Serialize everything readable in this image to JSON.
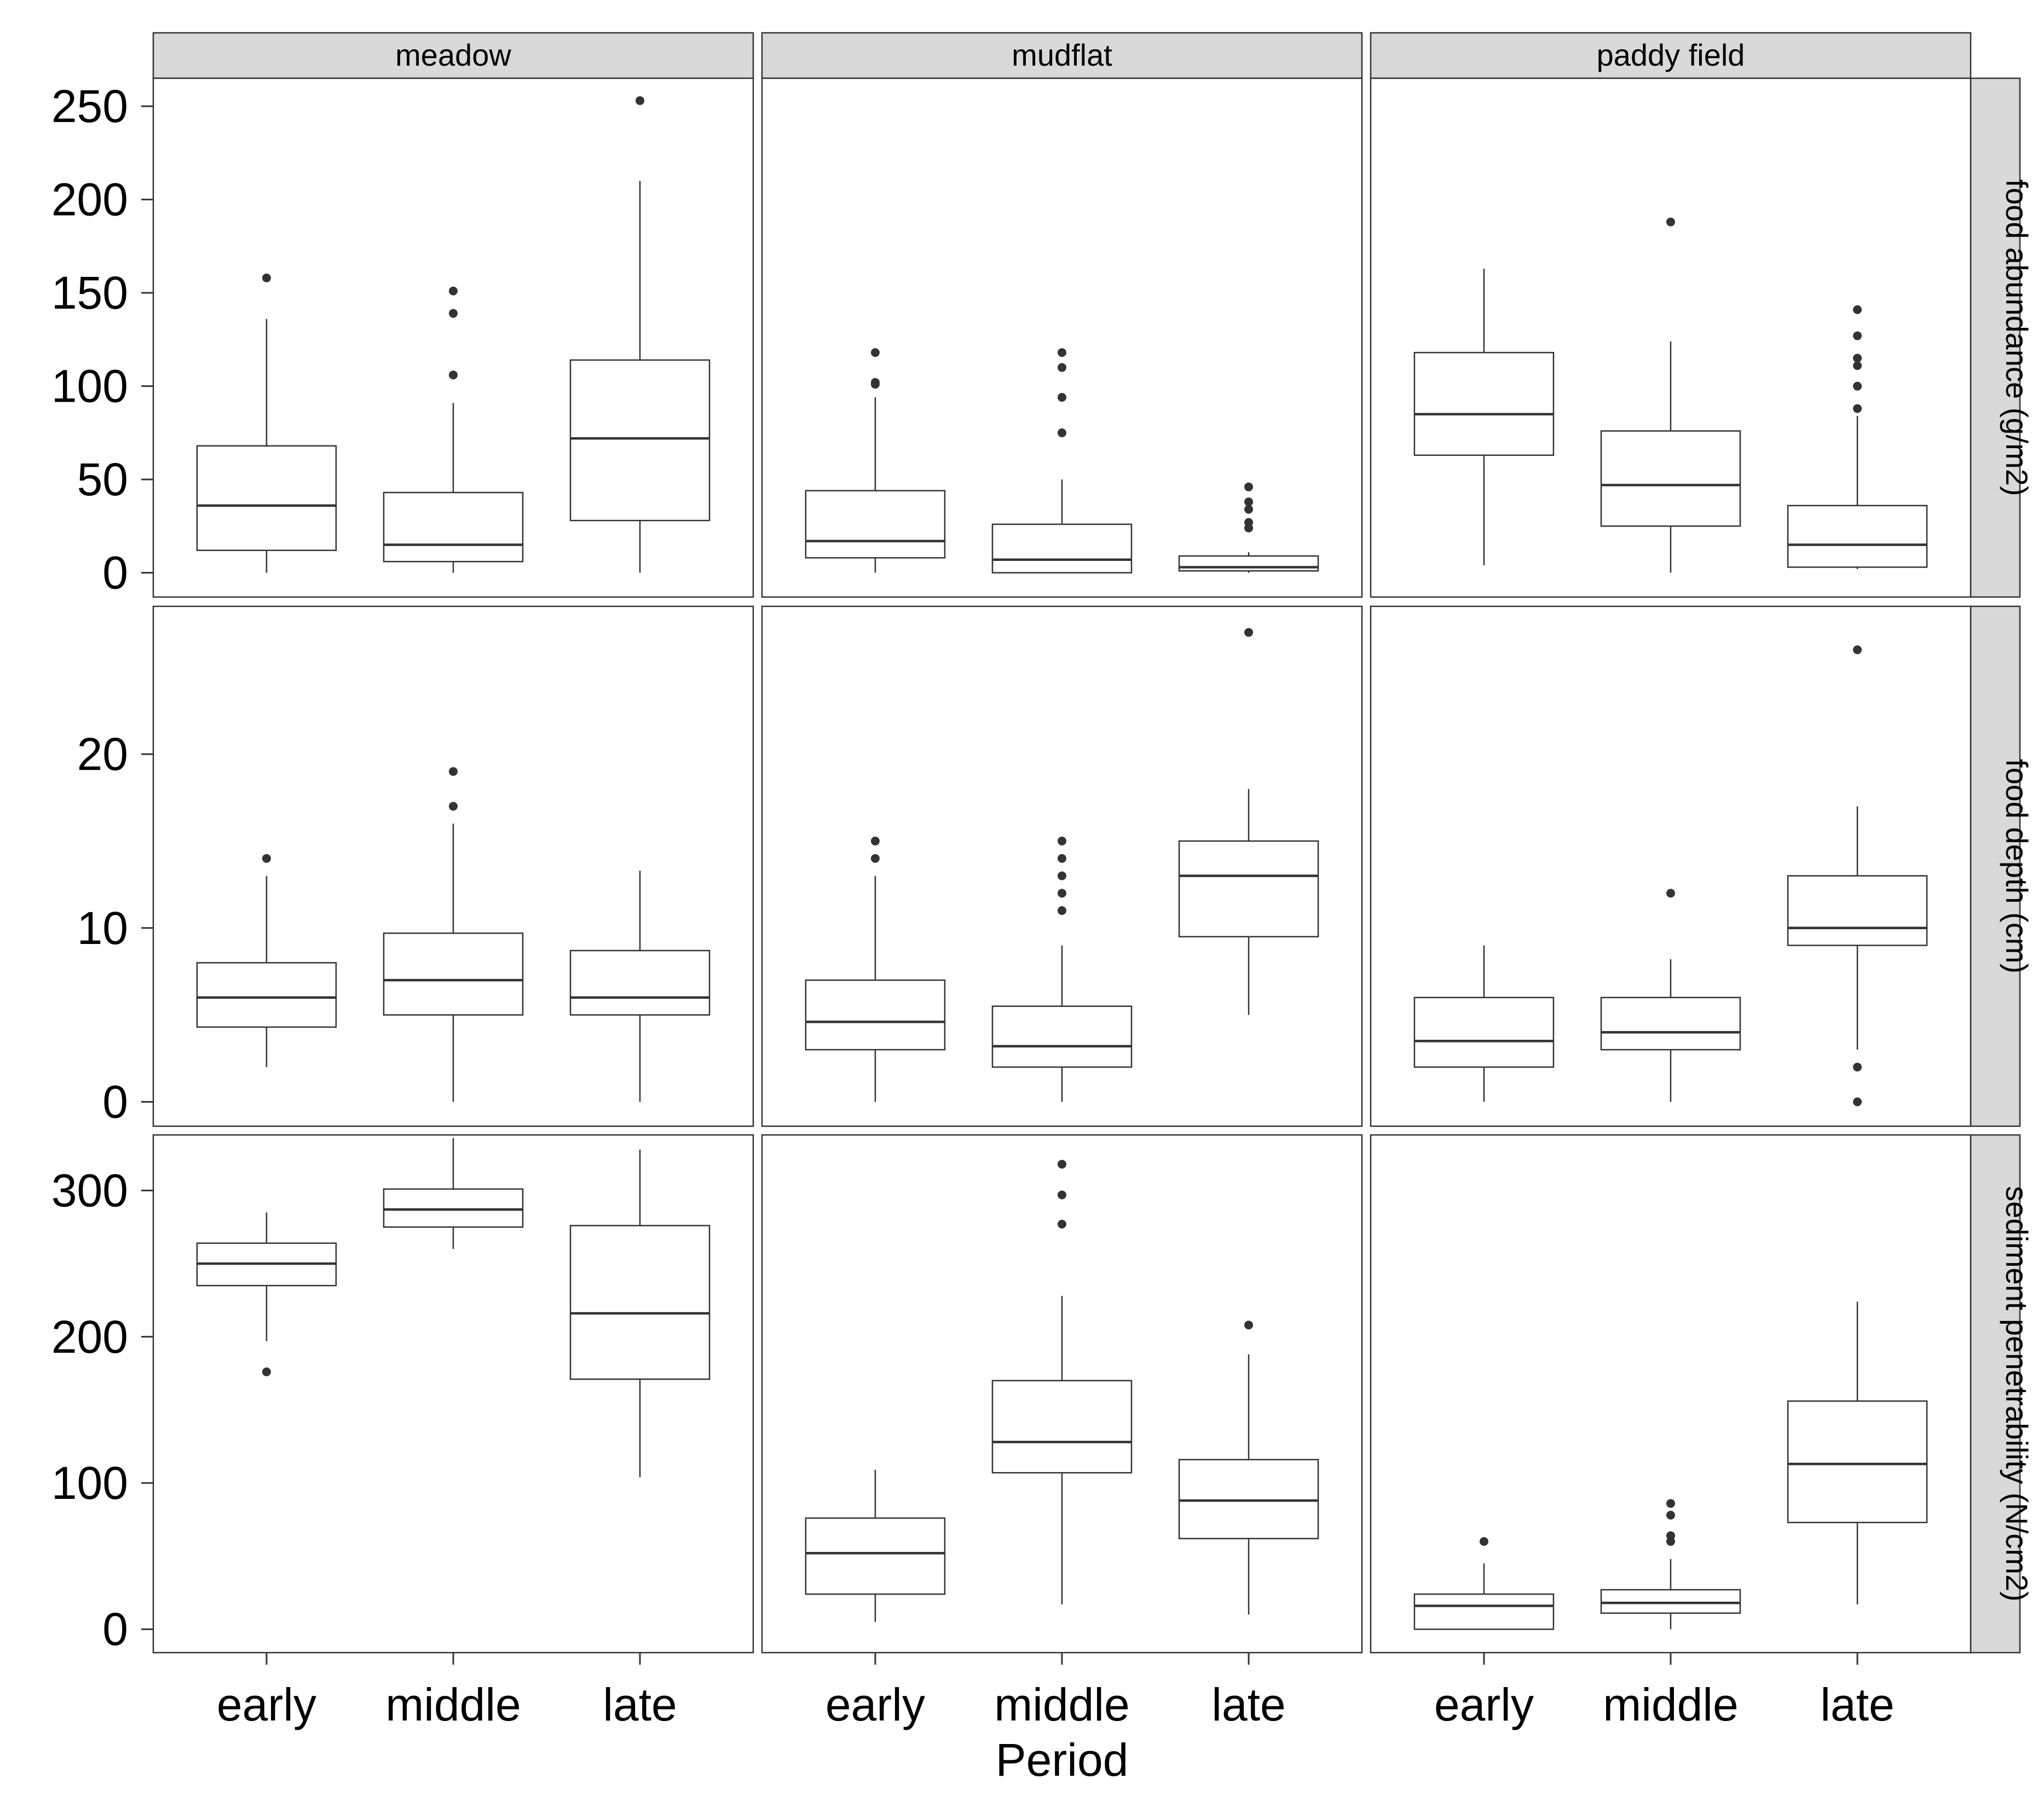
{
  "chart_data": {
    "type": "boxplot",
    "xlabel": "Period",
    "categories": [
      "early",
      "middle",
      "late"
    ],
    "columns": [
      "meadow",
      "mudflat",
      "paddy field"
    ],
    "rows": [
      {
        "label": "food abundance (g/m2)",
        "ylim": [
          -13,
          265
        ],
        "yticks": [
          "0",
          "50",
          "100",
          "150",
          "200",
          "250"
        ],
        "panels": [
          [
            {
              "lower": 0,
              "q1": 12,
              "median": 36,
              "q3": 68,
              "upper": 136,
              "outliers": [
                158
              ]
            },
            {
              "lower": 0,
              "q1": 6,
              "median": 15,
              "q3": 43,
              "upper": 91,
              "outliers": [
                106,
                139,
                151
              ]
            },
            {
              "lower": 0,
              "q1": 28,
              "median": 72,
              "q3": 114,
              "upper": 210,
              "outliers": [
                253
              ]
            }
          ],
          [
            {
              "lower": 0,
              "q1": 8,
              "median": 17,
              "q3": 44,
              "upper": 94,
              "outliers": [
                101,
                102,
                118
              ]
            },
            {
              "lower": 0,
              "q1": 0,
              "median": 7,
              "q3": 26,
              "upper": 50,
              "outliers": [
                75,
                94,
                110,
                118
              ]
            },
            {
              "lower": 0,
              "q1": 1,
              "median": 3,
              "q3": 9,
              "upper": 11,
              "outliers": [
                24,
                27,
                34,
                38,
                46
              ]
            }
          ],
          [
            {
              "lower": 4,
              "q1": 63,
              "median": 85,
              "q3": 118,
              "upper": 163,
              "outliers": []
            },
            {
              "lower": 0,
              "q1": 25,
              "median": 47,
              "q3": 76,
              "upper": 124,
              "outliers": [
                188
              ]
            },
            {
              "lower": 2,
              "q1": 3,
              "median": 15,
              "q3": 36,
              "upper": 84,
              "outliers": [
                88,
                100,
                111,
                115,
                127,
                141
              ]
            }
          ]
        ]
      },
      {
        "label": "food depth (cm)",
        "ylim": [
          -1.4,
          28.5
        ],
        "yticks": [
          "0",
          "10",
          "20"
        ],
        "panels": [
          [
            {
              "lower": 2,
              "q1": 4.3,
              "median": 6,
              "q3": 8,
              "upper": 13,
              "outliers": [
                14
              ]
            },
            {
              "lower": 0,
              "q1": 5,
              "median": 7,
              "q3": 9.7,
              "upper": 16,
              "outliers": [
                17,
                19
              ]
            },
            {
              "lower": 0,
              "q1": 5,
              "median": 6,
              "q3": 8.7,
              "upper": 13.3,
              "outliers": []
            }
          ],
          [
            {
              "lower": 0,
              "q1": 3,
              "median": 4.6,
              "q3": 7,
              "upper": 13,
              "outliers": [
                14,
                15
              ]
            },
            {
              "lower": 0,
              "q1": 2,
              "median": 3.2,
              "q3": 5.5,
              "upper": 9,
              "outliers": [
                11,
                12,
                13,
                14,
                15
              ]
            },
            {
              "lower": 5,
              "q1": 9.5,
              "median": 13,
              "q3": 15,
              "upper": 18,
              "outliers": [
                27
              ]
            }
          ],
          [
            {
              "lower": 0,
              "q1": 2,
              "median": 3.5,
              "q3": 6,
              "upper": 9,
              "outliers": []
            },
            {
              "lower": 0,
              "q1": 3,
              "median": 4,
              "q3": 6,
              "upper": 8.2,
              "outliers": [
                12
              ]
            },
            {
              "lower": 3,
              "q1": 9,
              "median": 10,
              "q3": 13,
              "upper": 17,
              "outliers": [
                0,
                2,
                26
              ]
            }
          ]
        ]
      },
      {
        "label": "sediment penetrability (N/cm2)",
        "ylim": [
          -16,
          338
        ],
        "yticks": [
          "0",
          "100",
          "200",
          "300"
        ],
        "panels": [
          [
            {
              "lower": 197,
              "q1": 235,
              "median": 250,
              "q3": 264,
              "upper": 285,
              "outliers": [
                176
              ]
            },
            {
              "lower": 260,
              "q1": 275,
              "median": 287,
              "q3": 301,
              "upper": 336,
              "outliers": []
            },
            {
              "lower": 104,
              "q1": 171,
              "median": 216,
              "q3": 276,
              "upper": 328,
              "outliers": []
            }
          ],
          [
            {
              "lower": 5,
              "q1": 24,
              "median": 52,
              "q3": 76,
              "upper": 109,
              "outliers": []
            },
            {
              "lower": 17,
              "q1": 107,
              "median": 128,
              "q3": 170,
              "upper": 228,
              "outliers": [
                277,
                297,
                318
              ]
            },
            {
              "lower": 10,
              "q1": 62,
              "median": 88,
              "q3": 116,
              "upper": 188,
              "outliers": [
                208
              ]
            }
          ],
          [
            {
              "lower": 0,
              "q1": 0,
              "median": 16,
              "q3": 24,
              "upper": 45,
              "outliers": [
                60
              ]
            },
            {
              "lower": 0,
              "q1": 11,
              "median": 18,
              "q3": 27,
              "upper": 48,
              "outliers": [
                60,
                64,
                78,
                86
              ]
            },
            {
              "lower": 17,
              "q1": 73,
              "median": 113,
              "q3": 156,
              "upper": 224,
              "outliers": []
            }
          ]
        ]
      }
    ]
  }
}
